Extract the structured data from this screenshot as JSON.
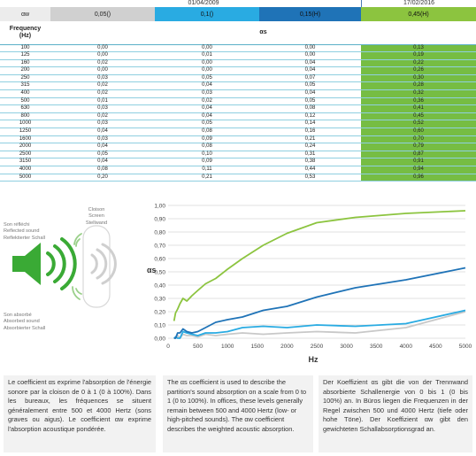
{
  "header": {
    "date_left": "01/04/2009",
    "date_right": "17/02/2016"
  },
  "table": {
    "aw_label": "αw",
    "aw_values": [
      "0,05()",
      "0,1()",
      "0,15(H)",
      "0,45(H)"
    ],
    "freq_header": "Frequency\n(Hz)",
    "alpha_s_header": "αs",
    "rows": [
      [
        "100",
        "0,00",
        "0,00",
        "0,00",
        "0,13"
      ],
      [
        "125",
        "0,00",
        "0,01",
        "0,00",
        "0,19"
      ],
      [
        "160",
        "0,02",
        "0,00",
        "0,04",
        "0,22"
      ],
      [
        "200",
        "0,00",
        "0,00",
        "0,04",
        "0,26"
      ],
      [
        "250",
        "0,03",
        "0,05",
        "0,07",
        "0,30"
      ],
      [
        "315",
        "0,02",
        "0,04",
        "0,05",
        "0,28"
      ],
      [
        "400",
        "0,02",
        "0,03",
        "0,04",
        "0,32"
      ],
      [
        "500",
        "0,01",
        "0,02",
        "0,05",
        "0,36"
      ],
      [
        "630",
        "0,03",
        "0,04",
        "0,08",
        "0,41"
      ],
      [
        "800",
        "0,02",
        "0,04",
        "0,12",
        "0,45"
      ],
      [
        "1000",
        "0,03",
        "0,05",
        "0,14",
        "0,52"
      ],
      [
        "1250",
        "0,04",
        "0,08",
        "0,16",
        "0,60"
      ],
      [
        "1600",
        "0,03",
        "0,09",
        "0,21",
        "0,70"
      ],
      [
        "2000",
        "0,04",
        "0,08",
        "0,24",
        "0,79"
      ],
      [
        "2500",
        "0,05",
        "0,10",
        "0,31",
        "0,87"
      ],
      [
        "3150",
        "0,04",
        "0,09",
        "0,38",
        "0,91"
      ],
      [
        "4000",
        "0,08",
        "0,11",
        "0,44",
        "0,94"
      ],
      [
        "5000",
        "0,20",
        "0,21",
        "0,53",
        "0,96"
      ]
    ]
  },
  "diagram": {
    "cloison_label": "Cloison\nScreen\nStellwand",
    "reflected_label": "Son réfléchi\nReflected sound\nReflektierter Schall",
    "absorbed_label": "Son absorbé\nAbsorbed sound\nAbsorbierter Schall"
  },
  "chart_data": {
    "type": "line",
    "xlabel": "Hz",
    "ylabel": "αs",
    "xlim": [
      0,
      5000
    ],
    "ylim": [
      0,
      1.0
    ],
    "x_ticks": [
      0,
      250,
      500,
      750,
      1000,
      1250,
      1500,
      1750,
      2000,
      2250,
      2500,
      2750,
      3000,
      3250,
      3500,
      3750,
      4000,
      4250,
      4500,
      4750,
      5000
    ],
    "x_tick_labels": [
      "0",
      "",
      "500",
      "",
      "1000",
      "",
      "1500",
      "",
      "2000",
      "",
      "2500",
      "",
      "3000",
      "",
      "3500",
      "",
      "4000",
      "",
      "4500",
      "",
      "5000"
    ],
    "y_ticks": [
      0,
      0.1,
      0.2,
      0.3,
      0.4,
      0.5,
      0.6,
      0.7,
      0.8,
      0.9,
      1.0
    ],
    "y_tick_labels": [
      "0,00",
      "0,10",
      "0,20",
      "0,30",
      "0,40",
      "0,50",
      "0,60",
      "0,70",
      "0,80",
      "0,90",
      "1,00"
    ],
    "grid": true,
    "x": [
      100,
      125,
      160,
      200,
      250,
      315,
      400,
      500,
      630,
      800,
      1000,
      1250,
      1600,
      2000,
      2500,
      3150,
      4000,
      5000
    ],
    "series": [
      {
        "color": "#c8c8c8",
        "values": [
          0.0,
          0.0,
          0.02,
          0.0,
          0.03,
          0.02,
          0.02,
          0.01,
          0.03,
          0.02,
          0.03,
          0.04,
          0.03,
          0.04,
          0.05,
          0.04,
          0.08,
          0.2
        ]
      },
      {
        "color": "#29abe2",
        "values": [
          0.0,
          0.01,
          0.0,
          0.0,
          0.05,
          0.04,
          0.03,
          0.02,
          0.04,
          0.04,
          0.05,
          0.08,
          0.09,
          0.08,
          0.1,
          0.09,
          0.11,
          0.21
        ]
      },
      {
        "color": "#1f73b7",
        "values": [
          0.0,
          0.0,
          0.04,
          0.04,
          0.07,
          0.05,
          0.04,
          0.05,
          0.08,
          0.12,
          0.14,
          0.16,
          0.21,
          0.24,
          0.31,
          0.38,
          0.44,
          0.53
        ]
      },
      {
        "color": "#8cc43f",
        "values": [
          0.13,
          0.19,
          0.22,
          0.26,
          0.3,
          0.28,
          0.32,
          0.36,
          0.41,
          0.45,
          0.52,
          0.6,
          0.7,
          0.79,
          0.87,
          0.91,
          0.94,
          0.96
        ]
      }
    ]
  },
  "text_fr": "Le coefficient αs exprime l'absorption de l'énergie sonore par la cloison de 0 à 1 (0 à 100%). Dans les bureaux, les fréquences se situent généralement entre 500 et 4000 Hertz (sons graves ou aigus). Le coefficient αw exprime l'absorption acoustique pondérée.",
  "text_en": "The αs coefficient is used to describe the partition's sound absorption on a scale from 0 to 1 (0 to 100%). In offices, these levels generally remain between 500 and 4000 Hertz (low- or high-pitched sounds). The αw coefficient describes the weighted acoustic absorption.",
  "text_de": "Der Koeffizient αs gibt die von der Trennwand absorbierte Schallenergie von 0 bis 1 (0 bis 100%) an. In Büros liegen die Frequenzen in der Regel zwischen 500 und 4000 Hertz (tiefe oder hohe Töne). Der Koeffizient αw gibt den gewichteten Schallabsorptionsgrad an.",
  "colors": {
    "grey": "#d0d0d0",
    "light_blue": "#29abe2",
    "dark_blue": "#1f73b7",
    "green": "#8cc43f",
    "speaker": "#3aaa35"
  },
  "icons": [
    "speaker-icon",
    "sound-wave-icon",
    "partition-screen-icon"
  ]
}
